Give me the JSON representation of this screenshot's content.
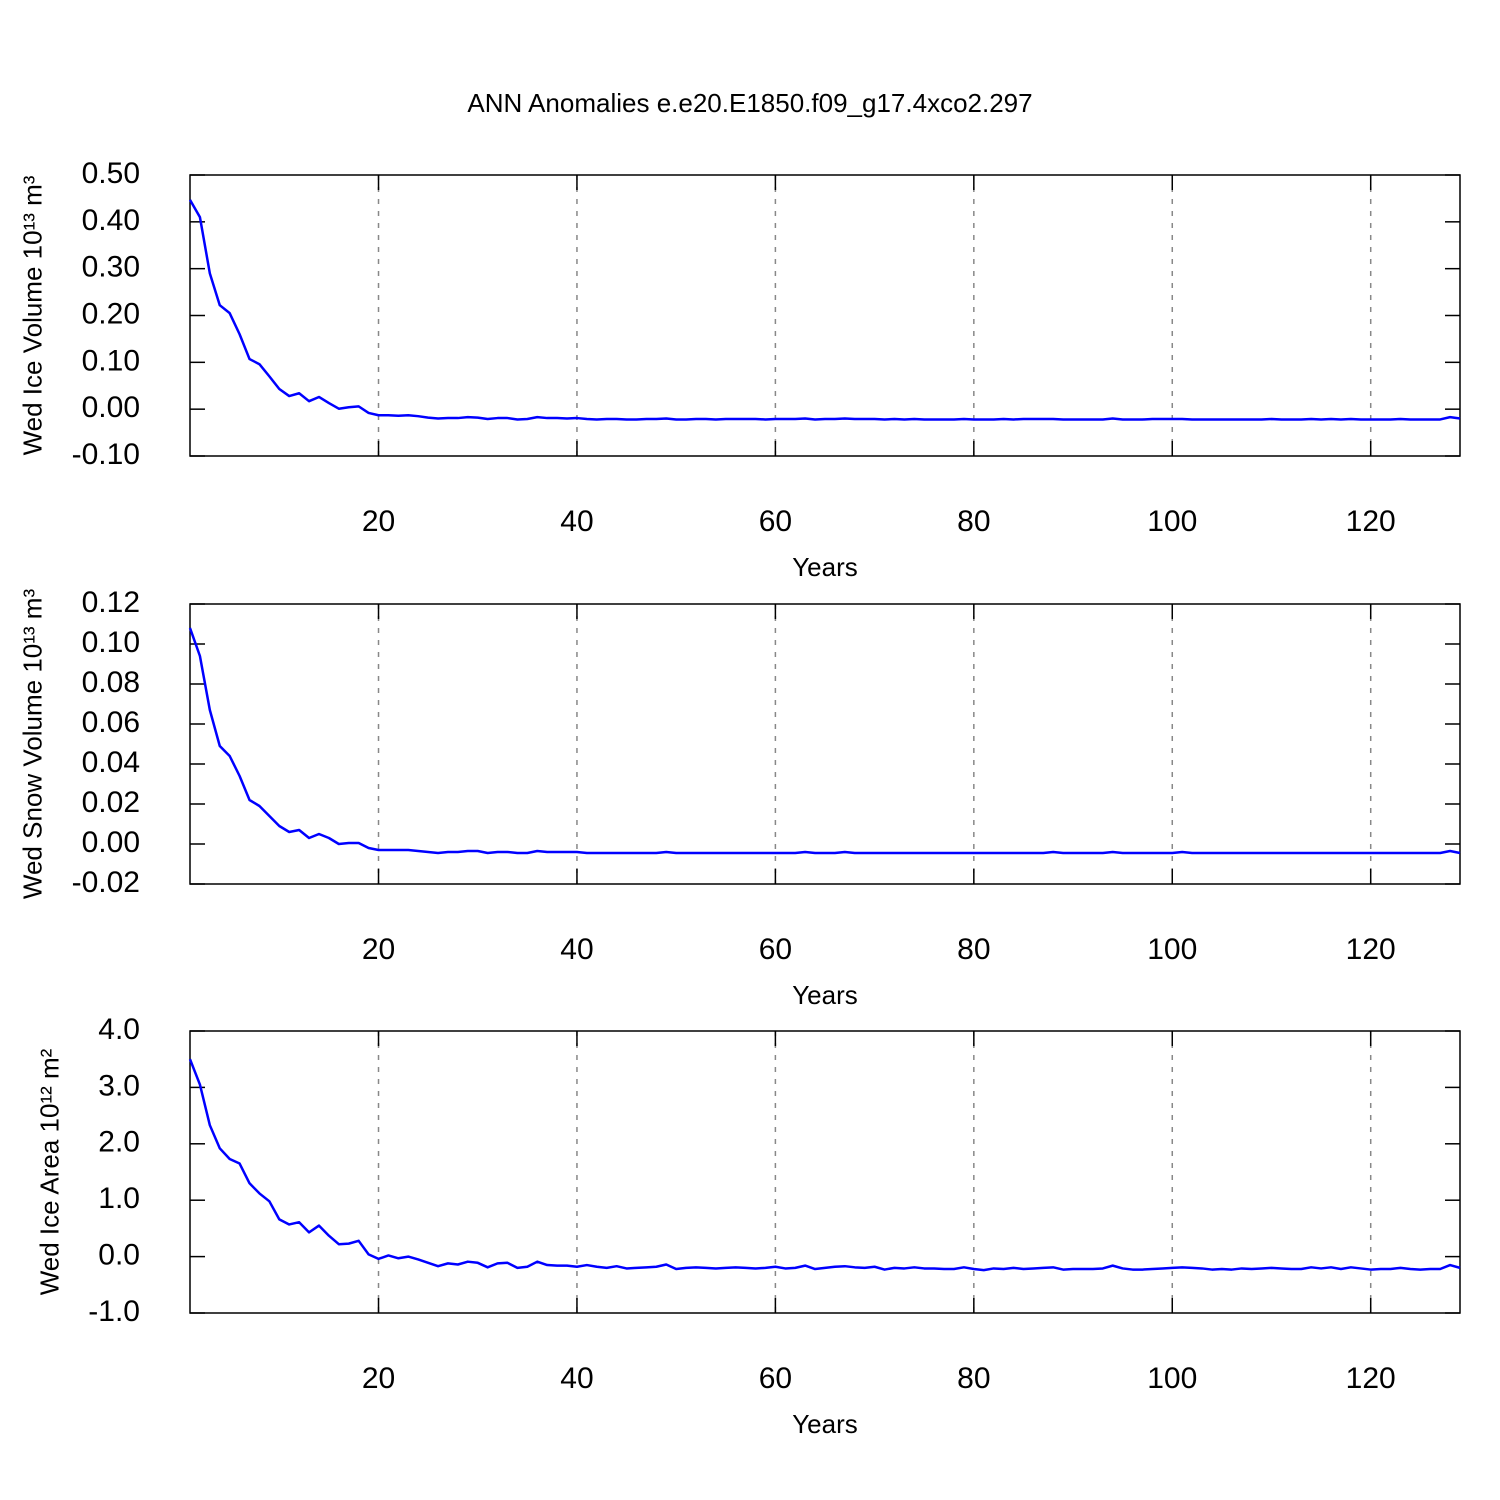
{
  "chart_data": [
    {
      "type": "line",
      "title": "ANN Anomalies e.e20.E1850.f09_g17.4xco2.297",
      "xlabel": "Years",
      "ylabel": "Wed Ice Volume 10¹³ m³",
      "color": "#0000ff",
      "grid": true,
      "xlim": [
        1,
        129
      ],
      "xticks": [
        20,
        40,
        60,
        80,
        100,
        120
      ],
      "ylim": [
        -0.1,
        0.5
      ],
      "yticks": [
        {
          "value": 0.5,
          "label": "0.50"
        },
        {
          "value": 0.4,
          "label": "0.40"
        },
        {
          "value": 0.3,
          "label": "0.30"
        },
        {
          "value": 0.2,
          "label": "0.20"
        },
        {
          "value": 0.1,
          "label": "0.10"
        },
        {
          "value": 0,
          "label": "0.00"
        },
        {
          "value": -0.1,
          "label": "-0.10"
        }
      ],
      "x": [
        1,
        2,
        3,
        4,
        5,
        6,
        7,
        8,
        9,
        10,
        11,
        12,
        13,
        14,
        15,
        16,
        17,
        18,
        19,
        20,
        21,
        22,
        23,
        24,
        25,
        26,
        27,
        28,
        29,
        30,
        31,
        32,
        33,
        34,
        35,
        36,
        37,
        38,
        39,
        40,
        41,
        42,
        43,
        44,
        45,
        46,
        47,
        48,
        49,
        50,
        51,
        52,
        53,
        54,
        55,
        56,
        57,
        58,
        59,
        60,
        61,
        62,
        63,
        64,
        65,
        66,
        67,
        68,
        69,
        70,
        71,
        72,
        73,
        74,
        75,
        76,
        77,
        78,
        79,
        80,
        81,
        82,
        83,
        84,
        85,
        86,
        87,
        88,
        89,
        90,
        91,
        92,
        93,
        94,
        95,
        96,
        97,
        98,
        99,
        100,
        101,
        102,
        103,
        104,
        105,
        106,
        107,
        108,
        109,
        110,
        111,
        112,
        113,
        114,
        115,
        116,
        117,
        118,
        119,
        120,
        121,
        122,
        123,
        124,
        125,
        126,
        127,
        128,
        129
      ],
      "values": [
        0.447,
        0.41,
        0.29,
        0.222,
        0.205,
        0.16,
        0.107,
        0.096,
        0.07,
        0.043,
        0.028,
        0.034,
        0.017,
        0.026,
        0.013,
        0.001,
        0.004,
        0.006,
        -0.008,
        -0.013,
        -0.013,
        -0.014,
        -0.013,
        -0.015,
        -0.018,
        -0.02,
        -0.019,
        -0.019,
        -0.017,
        -0.018,
        -0.021,
        -0.019,
        -0.019,
        -0.022,
        -0.021,
        -0.017,
        -0.019,
        -0.019,
        -0.02,
        -0.019,
        -0.021,
        -0.022,
        -0.021,
        -0.021,
        -0.022,
        -0.022,
        -0.021,
        -0.021,
        -0.02,
        -0.022,
        -0.022,
        -0.021,
        -0.021,
        -0.022,
        -0.021,
        -0.021,
        -0.021,
        -0.021,
        -0.022,
        -0.021,
        -0.021,
        -0.021,
        -0.02,
        -0.022,
        -0.021,
        -0.021,
        -0.02,
        -0.021,
        -0.021,
        -0.021,
        -0.022,
        -0.021,
        -0.022,
        -0.021,
        -0.022,
        -0.022,
        -0.022,
        -0.022,
        -0.021,
        -0.022,
        -0.022,
        -0.022,
        -0.021,
        -0.022,
        -0.021,
        -0.021,
        -0.021,
        -0.021,
        -0.022,
        -0.022,
        -0.022,
        -0.022,
        -0.022,
        -0.02,
        -0.022,
        -0.022,
        -0.022,
        -0.021,
        -0.021,
        -0.021,
        -0.021,
        -0.022,
        -0.022,
        -0.022,
        -0.022,
        -0.022,
        -0.022,
        -0.022,
        -0.022,
        -0.021,
        -0.022,
        -0.022,
        -0.022,
        -0.021,
        -0.022,
        -0.021,
        -0.022,
        -0.021,
        -0.022,
        -0.022,
        -0.022,
        -0.022,
        -0.021,
        -0.022,
        -0.022,
        -0.022,
        -0.022,
        -0.017,
        -0.02
      ]
    },
    {
      "type": "line",
      "xlabel": "Years",
      "ylabel": "Wed Snow Volume 10¹³ m³",
      "color": "#0000ff",
      "grid": true,
      "xlim": [
        1,
        129
      ],
      "xticks": [
        20,
        40,
        60,
        80,
        100,
        120
      ],
      "ylim": [
        -0.02,
        0.12
      ],
      "yticks": [
        {
          "value": 0.12,
          "label": "0.12"
        },
        {
          "value": 0.1,
          "label": "0.10"
        },
        {
          "value": 0.08,
          "label": "0.08"
        },
        {
          "value": 0.06,
          "label": "0.06"
        },
        {
          "value": 0.04,
          "label": "0.04"
        },
        {
          "value": 0.02,
          "label": "0.02"
        },
        {
          "value": 0,
          "label": "0.00"
        },
        {
          "value": -0.02,
          "label": "-0.02"
        }
      ],
      "x": [
        1,
        2,
        3,
        4,
        5,
        6,
        7,
        8,
        9,
        10,
        11,
        12,
        13,
        14,
        15,
        16,
        17,
        18,
        19,
        20,
        21,
        22,
        23,
        24,
        25,
        26,
        27,
        28,
        29,
        30,
        31,
        32,
        33,
        34,
        35,
        36,
        37,
        38,
        39,
        40,
        41,
        42,
        43,
        44,
        45,
        46,
        47,
        48,
        49,
        50,
        51,
        52,
        53,
        54,
        55,
        56,
        57,
        58,
        59,
        60,
        61,
        62,
        63,
        64,
        65,
        66,
        67,
        68,
        69,
        70,
        71,
        72,
        73,
        74,
        75,
        76,
        77,
        78,
        79,
        80,
        81,
        82,
        83,
        84,
        85,
        86,
        87,
        88,
        89,
        90,
        91,
        92,
        93,
        94,
        95,
        96,
        97,
        98,
        99,
        100,
        101,
        102,
        103,
        104,
        105,
        106,
        107,
        108,
        109,
        110,
        111,
        112,
        113,
        114,
        115,
        116,
        117,
        118,
        119,
        120,
        121,
        122,
        123,
        124,
        125,
        126,
        127,
        128,
        129
      ],
      "values": [
        0.108,
        0.094,
        0.067,
        0.049,
        0.044,
        0.034,
        0.022,
        0.019,
        0.014,
        0.009,
        0.006,
        0.007,
        0.003,
        0.005,
        0.003,
        0,
        0.0005,
        0.0005,
        -0.002,
        -0.003,
        -0.003,
        -0.003,
        -0.003,
        -0.0035,
        -0.004,
        -0.0045,
        -0.004,
        -0.004,
        -0.0035,
        -0.0035,
        -0.0045,
        -0.004,
        -0.004,
        -0.0045,
        -0.0045,
        -0.0035,
        -0.004,
        -0.004,
        -0.004,
        -0.004,
        -0.0045,
        -0.0045,
        -0.0045,
        -0.0045,
        -0.0045,
        -0.0045,
        -0.0045,
        -0.0045,
        -0.004,
        -0.0045,
        -0.0045,
        -0.0045,
        -0.0045,
        -0.0045,
        -0.0045,
        -0.0045,
        -0.0045,
        -0.0045,
        -0.0045,
        -0.0045,
        -0.0045,
        -0.0045,
        -0.004,
        -0.0045,
        -0.0045,
        -0.0045,
        -0.004,
        -0.0045,
        -0.0045,
        -0.0045,
        -0.0045,
        -0.0045,
        -0.0045,
        -0.0045,
        -0.0045,
        -0.0045,
        -0.0045,
        -0.0045,
        -0.0045,
        -0.0045,
        -0.0045,
        -0.0045,
        -0.0045,
        -0.0045,
        -0.0045,
        -0.0045,
        -0.0045,
        -0.004,
        -0.0045,
        -0.0045,
        -0.0045,
        -0.0045,
        -0.0045,
        -0.004,
        -0.0045,
        -0.0045,
        -0.0045,
        -0.0045,
        -0.0045,
        -0.0045,
        -0.004,
        -0.0045,
        -0.0045,
        -0.0045,
        -0.0045,
        -0.0045,
        -0.0045,
        -0.0045,
        -0.0045,
        -0.0045,
        -0.0045,
        -0.0045,
        -0.0045,
        -0.0045,
        -0.0045,
        -0.0045,
        -0.0045,
        -0.0045,
        -0.0045,
        -0.0045,
        -0.0045,
        -0.0045,
        -0.0045,
        -0.0045,
        -0.0045,
        -0.0045,
        -0.0045,
        -0.0035,
        -0.0045
      ]
    },
    {
      "type": "line",
      "xlabel": "Years",
      "ylabel": "Wed Ice Area 10¹² m²",
      "color": "#0000ff",
      "grid": true,
      "xlim": [
        1,
        129
      ],
      "xticks": [
        20,
        40,
        60,
        80,
        100,
        120
      ],
      "ylim": [
        -1,
        4
      ],
      "yticks": [
        {
          "value": 4,
          "label": "4.0"
        },
        {
          "value": 3,
          "label": "3.0"
        },
        {
          "value": 2,
          "label": "2.0"
        },
        {
          "value": 1,
          "label": "1.0"
        },
        {
          "value": 0,
          "label": "0.0"
        },
        {
          "value": -1,
          "label": "-1.0"
        }
      ],
      "x": [
        1,
        2,
        3,
        4,
        5,
        6,
        7,
        8,
        9,
        10,
        11,
        12,
        13,
        14,
        15,
        16,
        17,
        18,
        19,
        20,
        21,
        22,
        23,
        24,
        25,
        26,
        27,
        28,
        29,
        30,
        31,
        32,
        33,
        34,
        35,
        36,
        37,
        38,
        39,
        40,
        41,
        42,
        43,
        44,
        45,
        46,
        47,
        48,
        49,
        50,
        51,
        52,
        53,
        54,
        55,
        56,
        57,
        58,
        59,
        60,
        61,
        62,
        63,
        64,
        65,
        66,
        67,
        68,
        69,
        70,
        71,
        72,
        73,
        74,
        75,
        76,
        77,
        78,
        79,
        80,
        81,
        82,
        83,
        84,
        85,
        86,
        87,
        88,
        89,
        90,
        91,
        92,
        93,
        94,
        95,
        96,
        97,
        98,
        99,
        100,
        101,
        102,
        103,
        104,
        105,
        106,
        107,
        108,
        109,
        110,
        111,
        112,
        113,
        114,
        115,
        116,
        117,
        118,
        119,
        120,
        121,
        122,
        123,
        124,
        125,
        126,
        127,
        128,
        129
      ],
      "values": [
        3.5,
        3.05,
        2.33,
        1.92,
        1.73,
        1.65,
        1.3,
        1.12,
        0.98,
        0.66,
        0.57,
        0.61,
        0.43,
        0.55,
        0.37,
        0.22,
        0.23,
        0.28,
        0.04,
        -0.04,
        0.02,
        -0.03,
        0,
        -0.05,
        -0.11,
        -0.17,
        -0.12,
        -0.14,
        -0.09,
        -0.11,
        -0.19,
        -0.12,
        -0.11,
        -0.2,
        -0.18,
        -0.09,
        -0.15,
        -0.16,
        -0.16,
        -0.18,
        -0.15,
        -0.18,
        -0.2,
        -0.17,
        -0.21,
        -0.2,
        -0.19,
        -0.18,
        -0.14,
        -0.22,
        -0.2,
        -0.19,
        -0.2,
        -0.21,
        -0.2,
        -0.19,
        -0.2,
        -0.21,
        -0.2,
        -0.18,
        -0.21,
        -0.2,
        -0.16,
        -0.22,
        -0.2,
        -0.18,
        -0.17,
        -0.19,
        -0.2,
        -0.18,
        -0.23,
        -0.2,
        -0.21,
        -0.19,
        -0.21,
        -0.21,
        -0.22,
        -0.22,
        -0.19,
        -0.22,
        -0.24,
        -0.21,
        -0.22,
        -0.2,
        -0.22,
        -0.21,
        -0.2,
        -0.19,
        -0.23,
        -0.22,
        -0.22,
        -0.22,
        -0.21,
        -0.16,
        -0.21,
        -0.23,
        -0.23,
        -0.22,
        -0.21,
        -0.2,
        -0.19,
        -0.2,
        -0.21,
        -0.23,
        -0.22,
        -0.23,
        -0.21,
        -0.22,
        -0.21,
        -0.2,
        -0.21,
        -0.22,
        -0.22,
        -0.19,
        -0.21,
        -0.19,
        -0.22,
        -0.19,
        -0.21,
        -0.23,
        -0.22,
        -0.22,
        -0.2,
        -0.22,
        -0.23,
        -0.22,
        -0.22,
        -0.15,
        -0.2
      ]
    }
  ]
}
